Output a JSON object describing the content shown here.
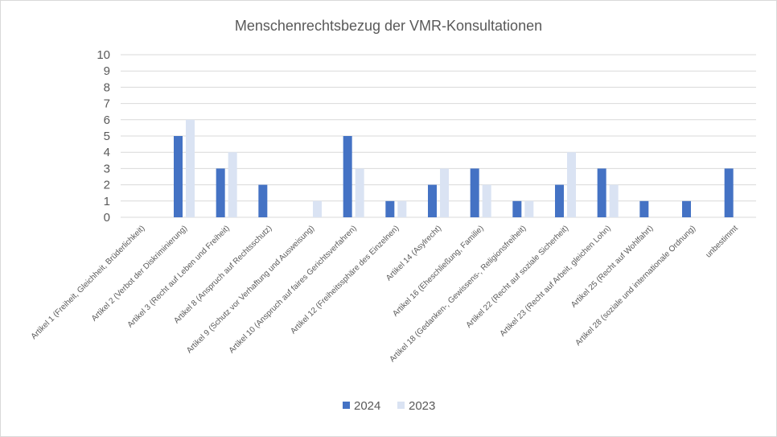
{
  "chart_data": {
    "type": "bar",
    "title": "Menschenrechtsbezug der VMR-Konsultationen",
    "xlabel": "",
    "ylabel": "",
    "ylim": [
      0,
      10
    ],
    "yticks": [
      0,
      1,
      2,
      3,
      4,
      5,
      6,
      7,
      8,
      9,
      10
    ],
    "grid": true,
    "legend_position": "bottom",
    "categories": [
      "Artikel 1 (Freiheit, Gleichheit, Brüderlichkeit)",
      "Artikel 2 (Verbot der Diskriminierung)",
      "Artikel 3 (Recht auf Leben und Freiheit)",
      "Artikel 8 (Anspruch auf Rechtsschutz)",
      "Artikel 9 (Schutz vor Verhaftung und Ausweisung)",
      "Artikel 10 (Anspruch auf faires Gerichtsverfahren)",
      "Artikel 12 (Freiheitssphäre des Einzelnen)",
      "Artikel 14 (Asylrecht)",
      "Artikel 16 (Eheschließung, Familie)",
      "Artikel 18 (Gedanken-, Gewissens-, Religionsfreiheit)",
      "Artikel 22 (Recht auf soziale Sicherheit)",
      "Artikel 23 (Recht auf Arbeit, gleichen Lohn)",
      "Artikel 25 (Recht auf Wohlfahrt)",
      "Artikel 28 (soziale und internationale Ordnung)",
      "unbestimmt"
    ],
    "series": [
      {
        "name": "2024",
        "color": "#4472c4",
        "values": [
          0,
          5,
          3,
          2,
          0,
          5,
          1,
          2,
          3,
          1,
          2,
          3,
          1,
          1,
          3
        ]
      },
      {
        "name": "2023",
        "color": "#dae3f3",
        "values": [
          0,
          6,
          4,
          0,
          1,
          3,
          1,
          3,
          2,
          1,
          4,
          2,
          0,
          0,
          0
        ]
      }
    ]
  },
  "colors": {
    "gridline": "#d9d9d9",
    "text": "#595959",
    "border": "#d9d9d9"
  }
}
